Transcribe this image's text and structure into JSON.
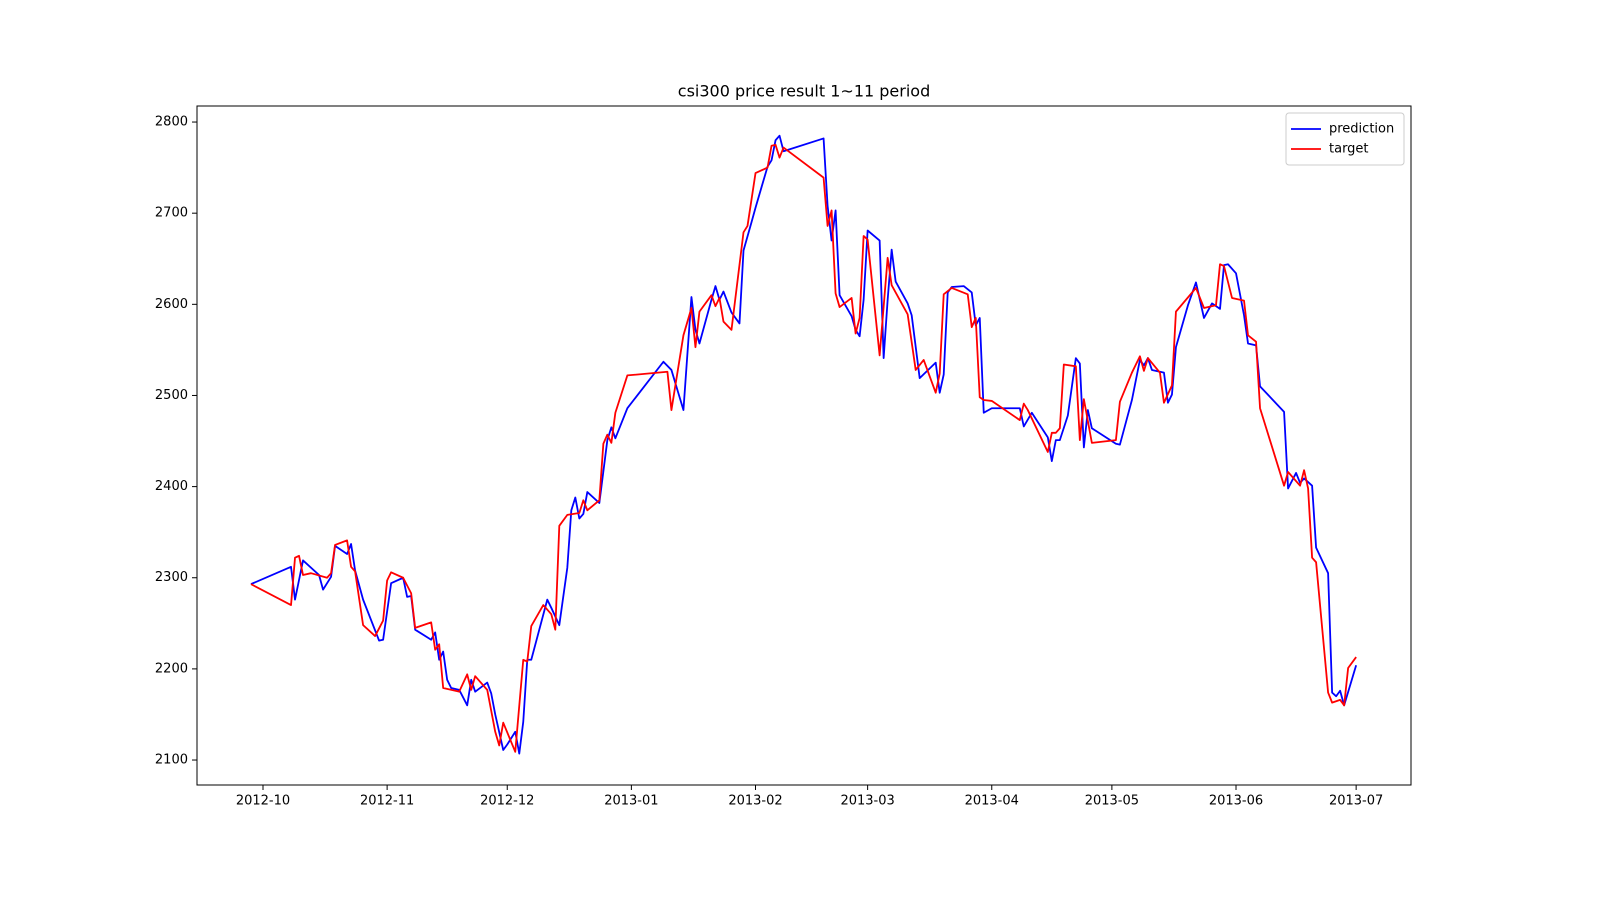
{
  "chart_data": {
    "type": "line",
    "title": "csi300 price result 1~11 period",
    "xlim": [
      -16.48,
      286.7
    ],
    "xticks": [
      {
        "value": 0,
        "label": "2012-10"
      },
      {
        "value": 31,
        "label": "2012-11"
      },
      {
        "value": 61,
        "label": "2012-12"
      },
      {
        "value": 92,
        "label": "2013-01"
      },
      {
        "value": 123,
        "label": "2013-02"
      },
      {
        "value": 151,
        "label": "2013-03"
      },
      {
        "value": 182,
        "label": "2013-04"
      },
      {
        "value": 212,
        "label": "2013-05"
      },
      {
        "value": 243,
        "label": "2013-06"
      },
      {
        "value": 273,
        "label": "2013-07"
      }
    ],
    "ylim": [
      2072.6,
      2817.6
    ],
    "yticks": [
      2100,
      2200,
      2300,
      2400,
      2500,
      2600,
      2700,
      2800
    ],
    "grid": false,
    "legend": "upper right",
    "series": [
      {
        "name": "prediction",
        "color": "#0000ff",
        "x": [
          -3,
          7,
          8,
          10,
          14,
          15,
          17,
          18,
          21,
          22,
          23,
          25,
          29,
          30,
          32,
          35,
          36,
          37,
          38,
          42,
          43,
          44,
          45,
          46,
          47,
          49,
          51,
          52,
          53,
          56,
          57,
          58,
          60,
          61,
          63,
          64,
          65,
          66,
          67,
          71,
          72,
          74,
          76,
          77,
          78,
          79,
          80,
          81,
          84,
          86,
          87,
          88,
          91,
          100,
          102,
          105,
          107,
          108,
          109,
          112,
          113,
          114,
          115,
          117,
          119,
          120,
          122,
          123,
          126,
          127,
          128,
          129,
          130,
          140,
          141,
          142,
          143,
          144,
          147,
          148,
          149,
          150,
          151,
          154,
          155,
          156,
          157,
          158,
          161,
          162,
          164,
          168,
          169,
          170,
          171,
          172,
          175,
          177,
          178,
          179,
          180,
          182,
          189,
          190,
          192,
          196,
          197,
          198,
          199,
          201,
          203,
          204,
          205,
          206,
          207,
          213,
          214,
          217,
          219,
          220,
          221,
          222,
          225,
          226,
          227,
          228,
          231,
          233,
          235,
          237,
          239,
          240,
          241,
          243,
          245,
          246,
          248,
          249,
          255,
          256,
          258,
          259,
          260,
          262,
          263,
          266,
          267,
          268,
          269,
          270,
          273
        ],
        "values": [
          2293,
          2312,
          2276,
          2319,
          2303,
          2287,
          2301,
          2335,
          2326,
          2337,
          2308,
          2276,
          2231,
          2232,
          2294,
          2300,
          2279,
          2280,
          2243,
          2232,
          2240,
          2210,
          2219,
          2188,
          2179,
          2177,
          2160,
          2188,
          2175,
          2185,
          2173,
          2150,
          2111,
          2117,
          2131,
          2107,
          2142,
          2210,
          2210,
          2276,
          2267,
          2248,
          2311,
          2374,
          2388,
          2365,
          2370,
          2394,
          2382,
          2451,
          2465,
          2453,
          2486,
          2537,
          2528,
          2484,
          2608,
          2572,
          2557,
          2605,
          2620,
          2605,
          2614,
          2591,
          2579,
          2659,
          2690,
          2706,
          2751,
          2758,
          2780,
          2785,
          2768,
          2782,
          2708,
          2670,
          2703,
          2610,
          2587,
          2572,
          2565,
          2605,
          2681,
          2670,
          2541,
          2605,
          2660,
          2625,
          2601,
          2588,
          2519,
          2536,
          2503,
          2523,
          2613,
          2619,
          2620,
          2613,
          2577,
          2585,
          2481,
          2486,
          2486,
          2466,
          2481,
          2454,
          2428,
          2451,
          2451,
          2478,
          2541,
          2535,
          2443,
          2484,
          2464,
          2447,
          2446,
          2495,
          2539,
          2533,
          2541,
          2528,
          2525,
          2492,
          2501,
          2553,
          2599,
          2624,
          2585,
          2601,
          2595,
          2643,
          2644,
          2634,
          2588,
          2557,
          2555,
          2510,
          2482,
          2398,
          2415,
          2404,
          2409,
          2401,
          2333,
          2305,
          2174,
          2170,
          2176,
          2160,
          2204
        ]
      },
      {
        "name": "target",
        "color": "#ff0000",
        "x": [
          -3,
          7,
          8,
          9,
          10,
          12,
          16,
          17,
          18,
          21,
          22,
          23,
          25,
          28,
          30,
          31,
          32,
          35,
          37,
          38,
          42,
          43,
          44,
          45,
          49,
          51,
          52,
          53,
          56,
          58,
          59,
          60,
          63,
          65,
          66,
          67,
          70,
          72,
          73,
          74,
          76,
          79,
          80,
          81,
          84,
          85,
          86,
          87,
          88,
          91,
          101,
          102,
          105,
          107,
          108,
          109,
          112,
          113,
          114,
          115,
          117,
          120,
          121,
          123,
          126,
          127,
          128,
          129,
          130,
          140,
          141,
          142,
          143,
          144,
          147,
          148,
          149,
          150,
          151,
          154,
          156,
          157,
          161,
          163,
          165,
          168,
          169,
          170,
          172,
          176,
          177,
          178,
          179,
          180,
          182,
          189,
          190,
          191,
          196,
          197,
          198,
          199,
          200,
          203,
          204,
          205,
          207,
          213,
          214,
          217,
          219,
          220,
          221,
          224,
          225,
          227,
          228,
          233,
          235,
          238,
          239,
          240,
          242,
          245,
          246,
          248,
          249,
          255,
          256,
          259,
          260,
          261,
          262,
          263,
          266,
          267,
          269,
          270,
          271,
          273
        ],
        "values": [
          2293,
          2270,
          2322,
          2324,
          2303,
          2305,
          2300,
          2305,
          2336,
          2341,
          2312,
          2307,
          2248,
          2236,
          2253,
          2297,
          2306,
          2300,
          2283,
          2245,
          2251,
          2221,
          2227,
          2179,
          2175,
          2194,
          2177,
          2192,
          2177,
          2131,
          2116,
          2141,
          2109,
          2210,
          2208,
          2247,
          2270,
          2260,
          2243,
          2357,
          2369,
          2371,
          2385,
          2374,
          2385,
          2447,
          2457,
          2448,
          2481,
          2522,
          2526,
          2484,
          2566,
          2596,
          2553,
          2592,
          2610,
          2598,
          2607,
          2581,
          2572,
          2679,
          2686,
          2744,
          2750,
          2774,
          2775,
          2761,
          2772,
          2739,
          2686,
          2703,
          2612,
          2597,
          2607,
          2568,
          2585,
          2675,
          2671,
          2544,
          2651,
          2621,
          2589,
          2528,
          2539,
          2503,
          2524,
          2611,
          2618,
          2611,
          2575,
          2585,
          2498,
          2495,
          2494,
          2473,
          2491,
          2484,
          2438,
          2459,
          2459,
          2464,
          2534,
          2532,
          2451,
          2496,
          2448,
          2451,
          2493,
          2525,
          2543,
          2527,
          2541,
          2525,
          2492,
          2511,
          2592,
          2618,
          2596,
          2599,
          2644,
          2642,
          2607,
          2604,
          2566,
          2559,
          2486,
          2401,
          2416,
          2401,
          2418,
          2398,
          2322,
          2317,
          2174,
          2163,
          2166,
          2160,
          2201,
          2213
        ]
      }
    ]
  }
}
